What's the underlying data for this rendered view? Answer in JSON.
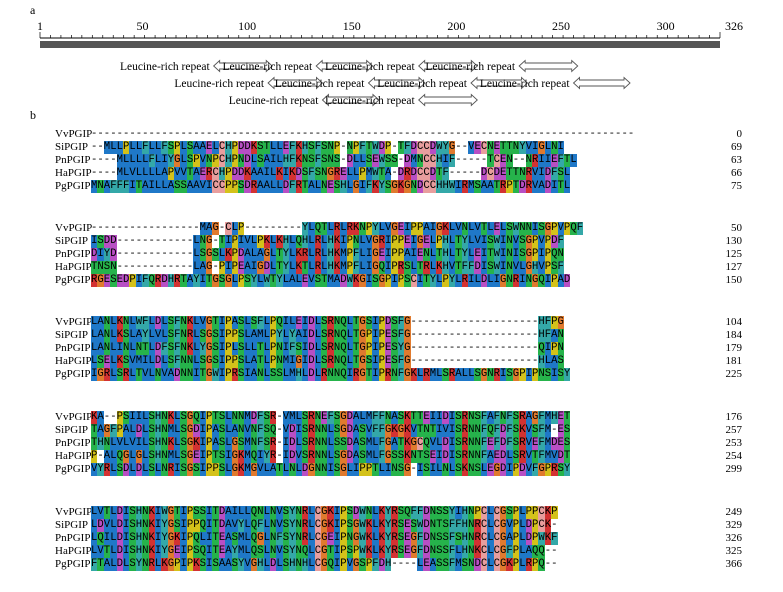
{
  "panel_a_label": "a",
  "panel_b_label": "b",
  "ruler": {
    "start": 1,
    "end": 326,
    "tick_labels": [
      "1",
      "50",
      "100",
      "150",
      "200",
      "250",
      "300",
      "326"
    ],
    "tick_values": [
      1,
      50,
      100,
      150,
      200,
      250,
      300,
      326
    ]
  },
  "repeats": [
    {
      "label": "Leucine-rich repeat",
      "start": 84,
      "end": 112,
      "row": 0
    },
    {
      "label": "Leucine-rich repeat",
      "start": 133,
      "end": 160,
      "row": 0
    },
    {
      "label": "Leucine-rich repeat",
      "start": 182,
      "end": 210,
      "row": 0
    },
    {
      "label": "Leucine-rich repeat",
      "start": 230,
      "end": 258,
      "row": 0
    },
    {
      "label": "Leucine-rich repeat",
      "start": 110,
      "end": 136,
      "row": 1
    },
    {
      "label": "Leucine-rich repeat",
      "start": 158,
      "end": 185,
      "row": 1
    },
    {
      "label": "Leucine-rich repeat",
      "start": 207,
      "end": 234,
      "row": 1
    },
    {
      "label": "Leucine-rich repeat",
      "start": 256,
      "end": 283,
      "row": 1
    },
    {
      "label": "Leucine-rich repeat",
      "start": 136,
      "end": 163,
      "row": 2
    },
    {
      "label": "Leucine-rich repeat",
      "start": 182,
      "end": 210,
      "row": 2
    }
  ],
  "alignment": {
    "blocks": [
      {
        "rows": [
          {
            "name": "VvPGIP",
            "seq": "-------------------------------------------------------------------------------------",
            "num": "0"
          },
          {
            "name": "SiPGIP",
            "seq": "--MLLPLLFLLFSPLSAAELCHPDDKSTLLEFKHSFSNP-NPFTWDP-TFDCCDWYG--VECNETTNYVIGLNI",
            "num": "69"
          },
          {
            "name": "PnPGIP",
            "seq": "----MLLLLFLIYGLSPVNPCHPNDLSAILHFKNSFSNS-DLLSEWSS-DMNCCHIF-----TCEN--NRIIEFTL",
            "num": "63"
          },
          {
            "name": "HaPGIP",
            "seq": "----MLVLLLLAPVVTAERCHPDDKAAILKIKDSFSNGRELLPMWTA-DRDCCDTF-----DCDETTNRVIDFSL",
            "num": "66"
          },
          {
            "name": "PgPGIP",
            "seq": "MNAFFFITAILLASSAAVICCPPSDRAALLDFRTALNESHLGIFKYSGKGNDCCHHWIRMSAATRPTDRVADITL",
            "num": "75"
          }
        ]
      },
      {
        "rows": [
          {
            "name": "VvPGIP",
            "seq": "-----------------MAG-CLP---------YLQTLRLRKNPYLVGEIPPAIGKLVNLVTLELSWNNISGPVPQF",
            "num": "50"
          },
          {
            "name": "SiPGIP",
            "seq": "ISDD------------LNG-TIPIVLPKLKHLQHLRLHKIPNLVGRIPPEIGELPHLTYLVISWINVSGPVPDF",
            "num": "130"
          },
          {
            "name": "PnPGIP",
            "seq": "DIYD------------LSGSLKPDALAGLTYLKRLRLHKMPFLIGEIPPAIENLTHLTYLEITWINISGPIPQN",
            "num": "125"
          },
          {
            "name": "HaPGIP",
            "seq": "TNSN------------LAG-PIPEAIGDLTYLKTLRLHKMPFLIGQIPRSLTRLKHVTFFDISWINVLGHVPSF",
            "num": "127"
          },
          {
            "name": "PgPGIP",
            "seq": "RGESEDPIFQRDHRTAYITGSGLPSYLWTYLALEVSTMADWKGISGPIPSCITYLPYLRILDLIGNRINGQIPAD",
            "num": "150"
          }
        ]
      },
      {
        "rows": [
          {
            "name": "VvPGIP",
            "seq": "LANLKNLWFLDLSFNKLVGTIPASLSFLPQILEIDLSRNQLTGSIPDSFG--------------------HFPG",
            "num": "104"
          },
          {
            "name": "SiPGIP",
            "seq": "LANLKSLAYLVLSFNRLSGSIPPSLAMLPYLYAIDLSRNQLTGPIPESFG--------------------HFAN",
            "num": "184"
          },
          {
            "name": "PnPGIP",
            "seq": "LANLINLNTLDFSFNKLYGSIPLSLLTLPNIFSIDLSRNQLTGPIPESYG--------------------QIPN",
            "num": "179"
          },
          {
            "name": "HaPGIP",
            "seq": "LSELKSVMILDLSFNNLSGSIPPSLATLPNMIGIDLSRNQLTGSIPESFG--------------------HLAS",
            "num": "181"
          },
          {
            "name": "PgPGIP",
            "seq": "IGRLSRLTVLNVADNNITGWIPRSIANLSSLMHLDLRNNQIRGTIPRNFGKLRMLSRALLSGNRISGPIPNSISY",
            "num": "225"
          }
        ]
      },
      {
        "rows": [
          {
            "name": "VvPGIP",
            "seq": "KA--PSIILSHNKLSGQIPTSLNNMDFSR-VMLSRNEFSGDALMFFNASKTTEIIDISRNSFAFNFSRAGFMHET",
            "num": "176"
          },
          {
            "name": "SiPGIP",
            "seq": "TAGFPALDLSHNMLSGDIPASLANVNFSQ-VDISRNNLSGDASVFFGKGKVTNTIVISRNNFQFDFSKVSFM-ES",
            "num": "257"
          },
          {
            "name": "PnPGIP",
            "seq": "THNLVLVILSHNKLSGKIPASLGSMNFSR-IDLSRNNLSSDASMLFGATKGCQVLDISRNNFEFDFSRVEFMDES",
            "num": "253"
          },
          {
            "name": "HaPGIP",
            "seq": "P-ALQGLGLSHNMLSGEIPTSIGKMQIYR-IDVSRNNLSGDASMLFGSSKNTSEIDISRNNFAEDLSRVTFMVDT",
            "num": "254"
          },
          {
            "name": "PgPGIP",
            "seq": "VYRLSDLDLSLNRISGSIPPSLGKMGVLATLNLDGNNISGLIPPTLINSG-ISILNLSKNSLEGDIPDVFGPRSY",
            "num": "299"
          }
        ]
      },
      {
        "rows": [
          {
            "name": "VvPGIP",
            "seq": "LVTLDISHNKIWGTIPSSITDAILLQNLNVSYNRLCGKIPSDWNLKYRSQFFDNSSYIHNPCLCGSPLPPCKP",
            "num": "249"
          },
          {
            "name": "SiPGIP",
            "seq": "LDVLDISHNKIYGSIPPQITDAVYLQFLNVSYNRLCGKIPSGWKLKYRSESWDNTSFFHNRCLCGVPLDPCK-",
            "num": "329"
          },
          {
            "name": "PnPGIP",
            "seq": "LQILDISHNKIYGKIPQLITEASMLQGLNFSYNRLCGEIPNGWKLKYRSEGFDNSSFSHNRCLCGAPLDPWKF",
            "num": "326"
          },
          {
            "name": "HaPGIP",
            "seq": "LVTLDISHNKIYGEIPSQITEAYMLQSLNVSYNQLCGTIPSPWKLKYRSEGFDNSSFLHNKCLCGFPLAQQ--",
            "num": "325"
          },
          {
            "name": "PgPGIP",
            "seq": "FTALDLSYNRLKGPIPKSISAASYVGHLDLSHNHLCGQIPVGSPFDH----LEASSFMSNDCLCGKPLRPQ--",
            "num": "366"
          }
        ]
      }
    ]
  },
  "colors": {
    "hydrophobic": "#1f78c8",
    "polar": "#26b34b",
    "positive": "#d33232",
    "negative": "#b84fc4",
    "glycine": "#e07a2e",
    "proline": "#d4c21a",
    "cysteine": "#e89e9e",
    "aromatic": "#34a8a8",
    "ruler_bar": "#555555"
  }
}
